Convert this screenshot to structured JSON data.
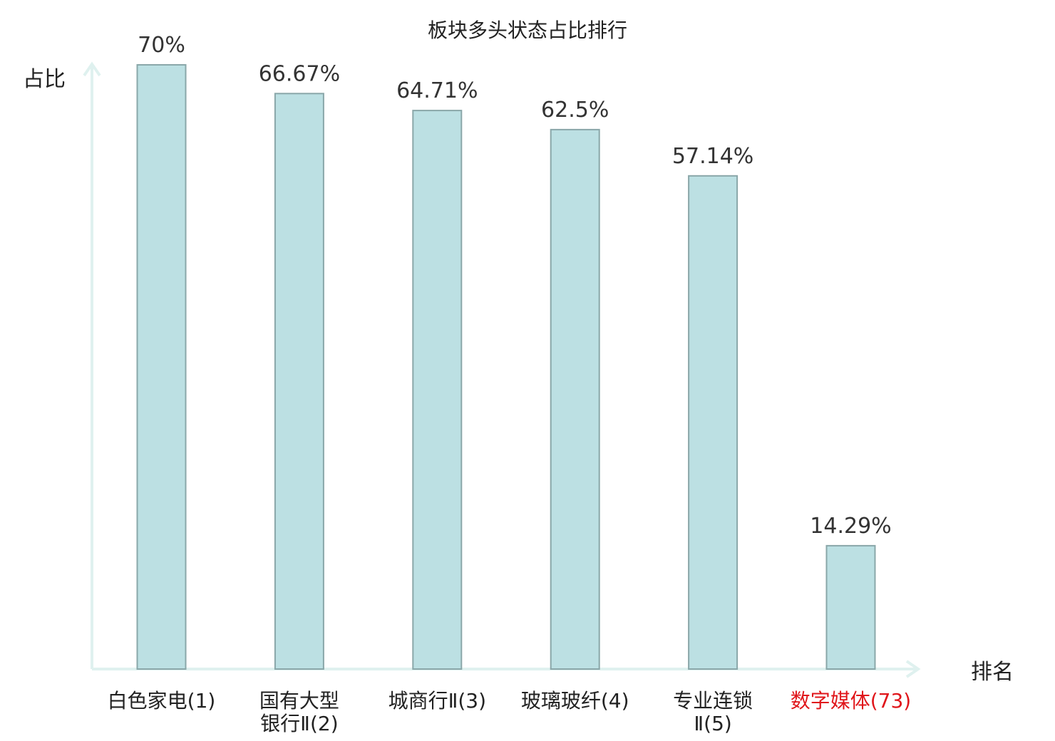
{
  "chart_data": {
    "type": "bar",
    "title": "板块多头状态占比排行",
    "ylabel": "占比",
    "xlabel": "排名",
    "ylim": [
      0,
      70
    ],
    "grid": false,
    "categories": [
      {
        "lines": [
          "白色家电(1)"
        ],
        "highlight": false
      },
      {
        "lines": [
          "国有大型",
          "银行Ⅱ(2)"
        ],
        "highlight": false
      },
      {
        "lines": [
          "城商行Ⅱ(3)"
        ],
        "highlight": false
      },
      {
        "lines": [
          "玻璃玻纤(4)"
        ],
        "highlight": false
      },
      {
        "lines": [
          "专业连锁",
          "Ⅱ(5)"
        ],
        "highlight": false
      },
      {
        "lines": [
          "数字媒体(73)"
        ],
        "highlight": true
      }
    ],
    "values": [
      70,
      66.67,
      64.71,
      62.5,
      57.14,
      14.29
    ],
    "value_labels": [
      "70%",
      "66.67%",
      "64.71%",
      "62.5%",
      "57.14%",
      "14.29%"
    ]
  },
  "colors": {
    "bar_fill": "#bce0e3",
    "bar_stroke": "#8aa7a9",
    "axis": "#dff1ef",
    "text": "#222222",
    "highlight": "#e0161b"
  }
}
